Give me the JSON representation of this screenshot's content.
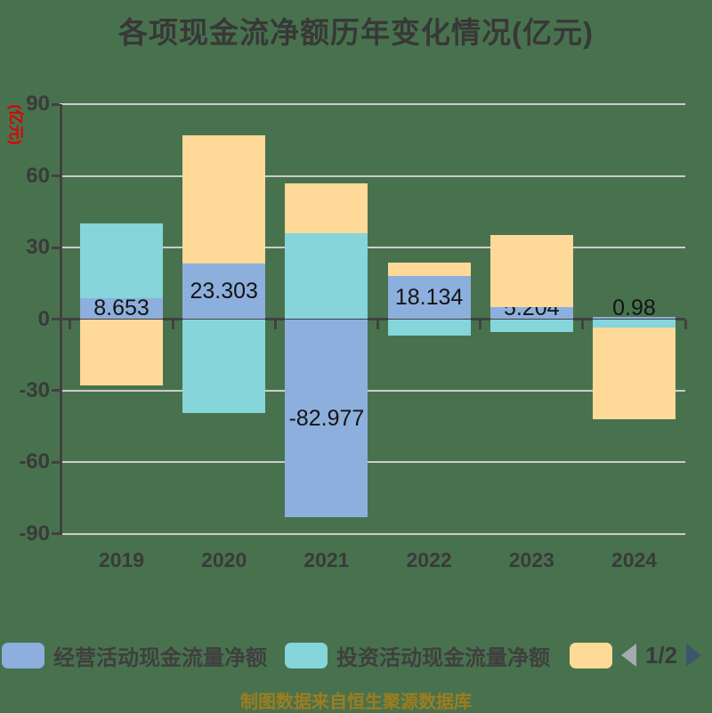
{
  "title": "各项现金流净额历年变化情况(亿元)",
  "y_axis": {
    "unit_label": "(亿元)",
    "ticks": [
      90,
      60,
      30,
      0,
      -30,
      -60,
      -90
    ]
  },
  "chart_data": {
    "type": "bar",
    "stacked": true,
    "title": "各项现金流净额历年变化情况(亿元)",
    "categories": [
      "2019",
      "2020",
      "2021",
      "2022",
      "2023",
      "2024"
    ],
    "series": [
      {
        "name": "经营活动现金流量净额",
        "color": "#8cafdd",
        "values": [
          8.653,
          23.303,
          -82.977,
          18.134,
          5.204,
          0.98
        ],
        "labels": [
          "8.653",
          "23.303",
          "-82.977",
          "18.134",
          "5.204",
          "0.98"
        ]
      },
      {
        "name": "投资活动现金流量净额",
        "color": "#85d5da",
        "values": [
          31.5,
          -39.4,
          36,
          -6.9,
          -5.3,
          -3.5
        ]
      },
      {
        "name": "",
        "color": "#fed998",
        "values": [
          -27.8,
          53.6,
          21,
          5.6,
          30,
          -38.5
        ]
      }
    ],
    "ylim": [
      -90,
      90
    ],
    "grid": true,
    "legend_position": "bottom"
  },
  "legend": {
    "items": [
      {
        "label": "经营活动现金流量净额",
        "color": "#8cafdd"
      },
      {
        "label": "投资活动现金流量净额",
        "color": "#85d5da"
      },
      {
        "label": "",
        "color": "#fed998"
      }
    ]
  },
  "pager": {
    "label": "1/2"
  },
  "caption": "制图数据来自恒生聚源数据库",
  "colors": {
    "background": "#48724e",
    "grid": "#cccccc",
    "axis": "#414141",
    "title_text": "#383838",
    "unit_label": "#dd0000",
    "bar_label": "#141414",
    "caption_text": "#9e7d1e",
    "pager_prev": "#a6abb0",
    "pager_next": "#3d566e"
  }
}
